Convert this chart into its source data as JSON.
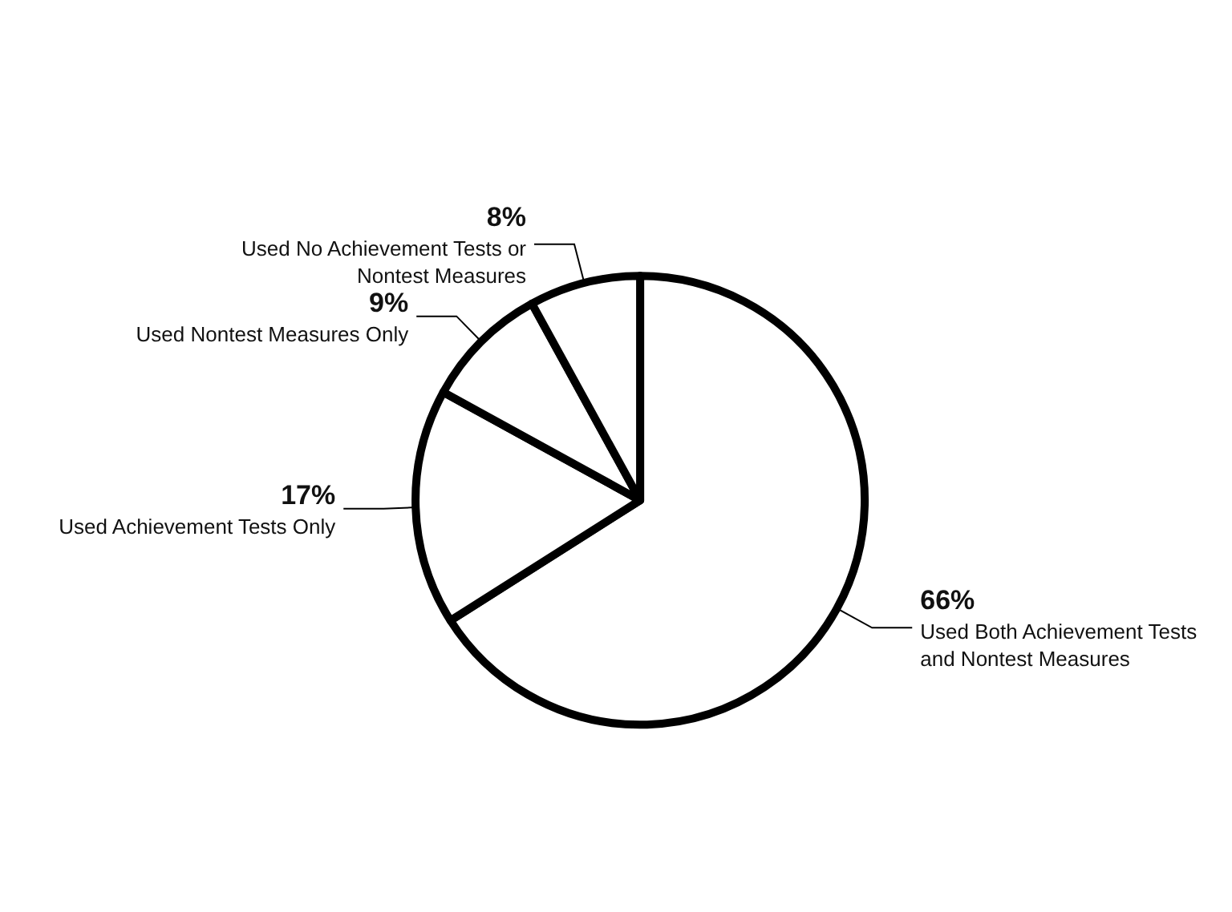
{
  "chart_data": {
    "type": "pie",
    "categories": [
      "Used Both Achievement Tests and Nontest Measures",
      "Used Achievement Tests Only",
      "Used Nontest Measures Only",
      "Used No Achievement Tests or Nontest Measures"
    ],
    "values": [
      66,
      17,
      9,
      8
    ],
    "value_labels": [
      "66%",
      "17%",
      "9%",
      "8%"
    ],
    "colors": [
      "#ffffff",
      "#ffffff",
      "#ffffff",
      "#ffffff"
    ]
  }
}
